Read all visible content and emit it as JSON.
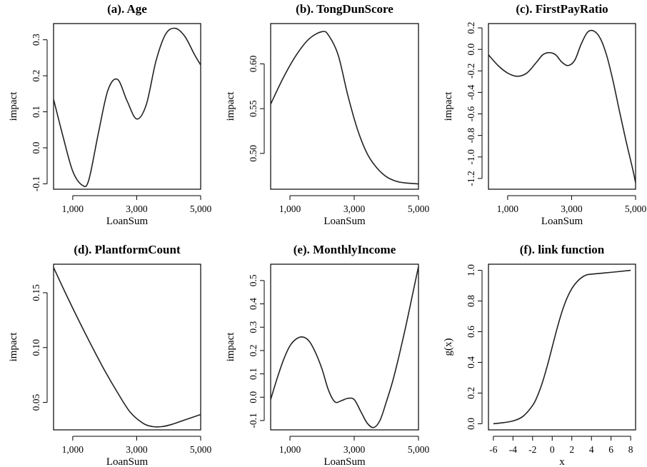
{
  "chart_data": [
    {
      "type": "line",
      "title": "(a). Age",
      "xlabel": "LoanSum",
      "ylabel": "impact",
      "xlim": [
        400,
        5000
      ],
      "ylim": [
        -0.115,
        0.345
      ],
      "xticks": [
        1000,
        3000,
        5000
      ],
      "xtick_labels": [
        "1,000",
        "3,000",
        "5,000"
      ],
      "yticks": [
        -0.1,
        0.0,
        0.1,
        0.2,
        0.3
      ],
      "ytick_labels": [
        "-0.1",
        "0.0",
        "0.1",
        "0.2",
        "0.3"
      ],
      "x": [
        400,
        700,
        1000,
        1300,
        1500,
        1800,
        2100,
        2400,
        2700,
        3000,
        3300,
        3600,
        3900,
        4200,
        4500,
        4800,
        5000
      ],
      "y": [
        0.135,
        0.03,
        -0.065,
        -0.104,
        -0.09,
        0.04,
        0.16,
        0.19,
        0.13,
        0.08,
        0.12,
        0.24,
        0.315,
        0.332,
        0.31,
        0.26,
        0.23
      ]
    },
    {
      "type": "line",
      "title": "(b). TongDunScore",
      "xlabel": "LoanSum",
      "ylabel": "impact",
      "xlim": [
        400,
        5000
      ],
      "ylim": [
        0.46,
        0.645
      ],
      "xticks": [
        1000,
        3000,
        5000
      ],
      "xtick_labels": [
        "1,000",
        "3,000",
        "5,000"
      ],
      "yticks": [
        0.5,
        0.55,
        0.6
      ],
      "ytick_labels": [
        "0.50",
        "0.55",
        "0.60"
      ],
      "x": [
        400,
        800,
        1200,
        1600,
        2000,
        2200,
        2500,
        2800,
        3100,
        3400,
        3700,
        4000,
        4300,
        4600,
        5000
      ],
      "y": [
        0.555,
        0.585,
        0.61,
        0.628,
        0.636,
        0.632,
        0.61,
        0.565,
        0.527,
        0.5,
        0.484,
        0.474,
        0.469,
        0.467,
        0.466
      ]
    },
    {
      "type": "line",
      "title": "(c). FirstPayRatio",
      "xlabel": "LoanSum",
      "ylabel": "impact",
      "xlim": [
        400,
        5000
      ],
      "ylim": [
        -1.3,
        0.24
      ],
      "xticks": [
        1000,
        3000,
        5000
      ],
      "xtick_labels": [
        "1,000",
        "3,000",
        "5,000"
      ],
      "yticks": [
        -1.2,
        -1.0,
        -0.8,
        -0.6,
        -0.4,
        -0.2,
        0.0,
        0.2
      ],
      "ytick_labels": [
        "-1.2",
        "-1.0",
        "-0.8",
        "-0.6",
        "-0.4",
        "-0.2",
        "0.0",
        "0.2"
      ],
      "x": [
        400,
        700,
        1000,
        1300,
        1600,
        1900,
        2100,
        2300,
        2500,
        2700,
        2900,
        3100,
        3300,
        3500,
        3700,
        3900,
        4100,
        4300,
        4500,
        4700,
        4900,
        5000
      ],
      "y": [
        -0.05,
        -0.15,
        -0.22,
        -0.25,
        -0.22,
        -0.12,
        -0.05,
        -0.03,
        -0.05,
        -0.12,
        -0.15,
        -0.1,
        0.05,
        0.16,
        0.17,
        0.1,
        -0.06,
        -0.3,
        -0.58,
        -0.85,
        -1.1,
        -1.24
      ]
    },
    {
      "type": "line",
      "title": "(d). PlantformCount",
      "xlabel": "LoanSum",
      "ylabel": "impact",
      "xlim": [
        400,
        5000
      ],
      "ylim": [
        0.025,
        0.176
      ],
      "xticks": [
        1000,
        3000,
        5000
      ],
      "xtick_labels": [
        "1,000",
        "3,000",
        "5,000"
      ],
      "yticks": [
        0.05,
        0.1,
        0.15
      ],
      "ytick_labels": [
        "0.05",
        "0.10",
        "0.15"
      ],
      "x": [
        400,
        800,
        1200,
        1600,
        2000,
        2400,
        2800,
        3200,
        3500,
        3800,
        4100,
        4400,
        4700,
        5000
      ],
      "y": [
        0.173,
        0.148,
        0.124,
        0.101,
        0.079,
        0.059,
        0.041,
        0.031,
        0.028,
        0.028,
        0.03,
        0.033,
        0.036,
        0.039
      ]
    },
    {
      "type": "line",
      "title": "(e). MonthlyIncome",
      "xlabel": "LoanSum",
      "ylabel": "impact",
      "xlim": [
        400,
        5000
      ],
      "ylim": [
        -0.14,
        0.57
      ],
      "xticks": [
        1000,
        3000,
        5000
      ],
      "xtick_labels": [
        "1,000",
        "3,000",
        "5,000"
      ],
      "yticks": [
        -0.1,
        0.0,
        0.1,
        0.2,
        0.3,
        0.4,
        0.5
      ],
      "ytick_labels": [
        "-0.1",
        "0.0",
        "0.1",
        "0.2",
        "0.3",
        "0.4",
        "0.5"
      ],
      "x": [
        400,
        600,
        800,
        1000,
        1200,
        1400,
        1600,
        1800,
        2000,
        2200,
        2400,
        2600,
        2800,
        3000,
        3200,
        3400,
        3600,
        3800,
        4000,
        4200,
        4400,
        4600,
        4800,
        5000
      ],
      "y": [
        -0.01,
        0.08,
        0.16,
        0.22,
        0.25,
        0.258,
        0.24,
        0.19,
        0.12,
        0.03,
        -0.02,
        -0.015,
        -0.005,
        -0.01,
        -0.06,
        -0.11,
        -0.13,
        -0.1,
        -0.02,
        0.07,
        0.18,
        0.3,
        0.43,
        0.56
      ]
    },
    {
      "type": "line",
      "title": "(f). link function",
      "xlabel": "x",
      "ylabel": "g(x)",
      "xlim": [
        -6.5,
        8.5
      ],
      "ylim": [
        -0.04,
        1.04
      ],
      "xticks": [
        -6,
        -4,
        -2,
        0,
        2,
        4,
        6,
        8
      ],
      "xtick_labels": [
        "-6",
        "-4",
        "-2",
        "0",
        "2",
        "4",
        "6",
        "8"
      ],
      "yticks": [
        0.0,
        0.2,
        0.4,
        0.6,
        0.8,
        1.0
      ],
      "ytick_labels": [
        "0.0",
        "0.2",
        "0.4",
        "0.6",
        "0.8",
        "1.0"
      ],
      "x": [
        -6,
        -5,
        -4,
        -3,
        -2,
        -1.5,
        -1,
        -0.5,
        0,
        0.5,
        1,
        1.5,
        2,
        2.5,
        3,
        3.5,
        4,
        6,
        8
      ],
      "y": [
        0.0,
        0.007,
        0.018,
        0.047,
        0.119,
        0.182,
        0.269,
        0.378,
        0.5,
        0.622,
        0.731,
        0.818,
        0.881,
        0.924,
        0.953,
        0.97,
        0.975,
        0.987,
        1.0
      ]
    }
  ]
}
